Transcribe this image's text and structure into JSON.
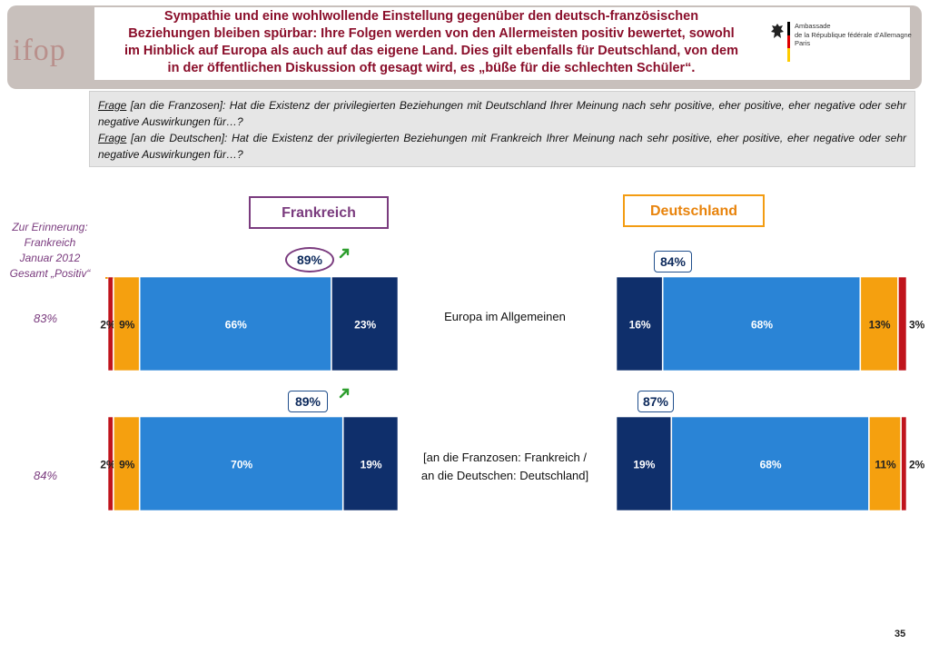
{
  "header": {
    "logo": "ifop",
    "title_lines": [
      "Sympathie und eine wohlwollende Einstellung gegenüber den deutsch-französischen",
      "Beziehungen bleiben spürbar: Ihre Folgen werden von den Allermeisten positiv bewertet, sowohl",
      "im Hinblick auf Europa als auch auf das eigene Land. Dies gilt ebenfalls für Deutschland, von dem",
      "in der öffentlichen Diskussion oft gesagt wird, es „büße für die schlechten Schüler“."
    ],
    "embassy_lines": [
      "Ambassade",
      "de la République fédérale d’Allemagne",
      "Paris"
    ]
  },
  "question": {
    "label1": "Frage",
    "text1": " [an die Franzosen]: Hat die Existenz der privilegierten Beziehungen mit Deutschland Ihrer Meinung nach sehr positive, eher positive, eher negative oder sehr negative Auswirkungen für…?",
    "label2": "Frage",
    "text2": " [an die Deutschen]: Hat die Existenz der privilegierten Beziehungen mit Frankreich Ihrer Meinung nach sehr positive, eher positive, eher negative oder sehr negative Auswirkungen für…?"
  },
  "heads": {
    "france": "Frankreich",
    "germany": "Deutschland"
  },
  "memo": {
    "lines": [
      "Zur Erinnerung:",
      "Frankreich",
      "Januar 2012",
      "Gesamt „Positiv“"
    ],
    "values": [
      "83%",
      "84%"
    ]
  },
  "colors": {
    "sehr_negativ": "#c0141c",
    "eher_negativ": "#f5a00f",
    "eher_positiv": "#2a84d6",
    "sehr_positiv": "#0f2f6b",
    "trend_arrow": "#2e9e2e"
  },
  "chart_data": {
    "type": "bar",
    "orientation": "horizontal",
    "stacked": true,
    "categories": [
      "Europa im Allgemeinen",
      "[an die Franzosen: Frankreich / an die Deutschen: Deutschland]"
    ],
    "category_lines": [
      [
        "Europa im Allgemeinen"
      ],
      [
        "[an die Franzosen: Frankreich /",
        "an die Deutschen: Deutschland]"
      ]
    ],
    "panels": [
      {
        "name": "Frankreich",
        "order": [
          "sehr_negativ",
          "eher_negativ",
          "eher_positiv",
          "sehr_positiv"
        ],
        "rows": [
          {
            "values": {
              "sehr_negativ": 2,
              "eher_negativ": 9,
              "eher_positiv": 66,
              "sehr_positiv": 23
            },
            "labels": [
              "2%",
              "9%",
              "66%",
              "23%"
            ],
            "total_positive": "89%",
            "trend": "up"
          },
          {
            "values": {
              "sehr_negativ": 2,
              "eher_negativ": 9,
              "eher_positiv": 70,
              "sehr_positiv": 19
            },
            "labels": [
              "2%",
              "9%",
              "70%",
              "19%"
            ],
            "total_positive": "89%",
            "trend": "up"
          }
        ]
      },
      {
        "name": "Deutschland",
        "order": [
          "sehr_positiv",
          "eher_positiv",
          "eher_negativ",
          "sehr_negativ"
        ],
        "rows": [
          {
            "values": {
              "sehr_positiv": 16,
              "eher_positiv": 68,
              "eher_negativ": 13,
              "sehr_negativ": 3
            },
            "labels": [
              "16%",
              "68%",
              "13%",
              "3%"
            ],
            "total_positive": "84%"
          },
          {
            "values": {
              "sehr_positiv": 19,
              "eher_positiv": 68,
              "eher_negativ": 11,
              "sehr_negativ": 2
            },
            "labels": [
              "19%",
              "68%",
              "11%",
              "2%"
            ],
            "total_positive": "87%"
          }
        ]
      }
    ]
  },
  "page_number": "35"
}
